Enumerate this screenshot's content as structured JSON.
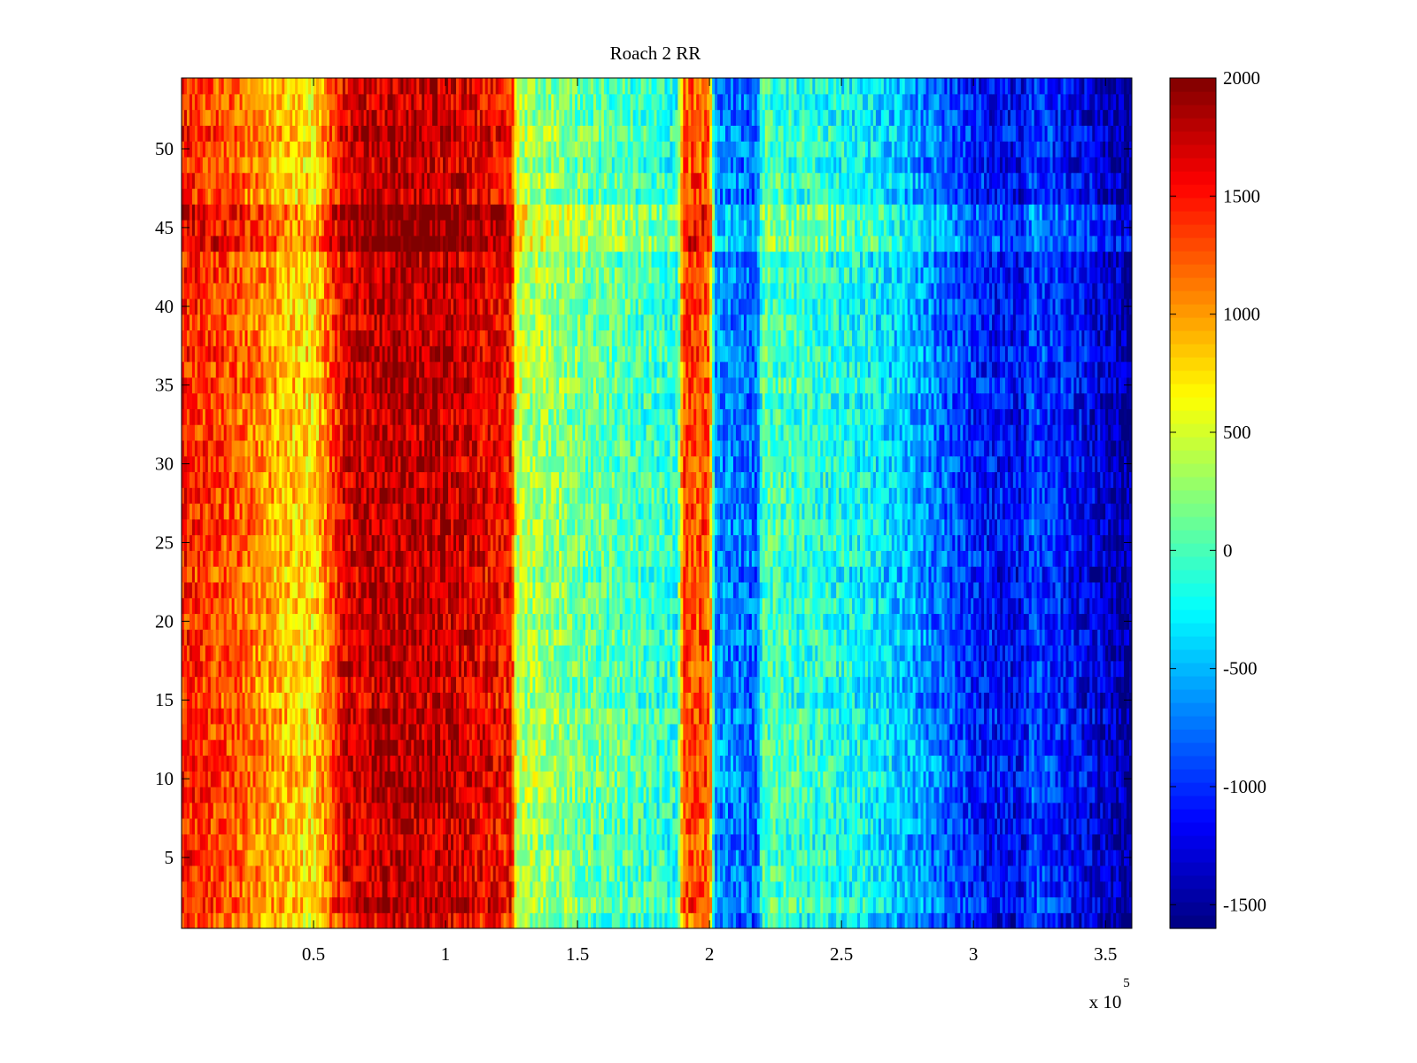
{
  "chart_data": {
    "type": "heatmap",
    "title": "Roach 2 RR",
    "xlabel": "",
    "ylabel": "",
    "xlim": [
      0,
      360000
    ],
    "ylim": [
      0.5,
      54.5
    ],
    "x_ticks": [
      50000,
      100000,
      150000,
      200000,
      250000,
      300000,
      350000
    ],
    "x_tick_labels": [
      "0.5",
      "1",
      "1.5",
      "2",
      "2.5",
      "3",
      "3.5"
    ],
    "x_exponent_label": "x 10",
    "x_exponent_power": "5",
    "y_ticks": [
      5,
      10,
      15,
      20,
      25,
      30,
      35,
      40,
      45,
      50
    ],
    "y_tick_labels": [
      "5",
      "10",
      "15",
      "20",
      "25",
      "30",
      "35",
      "40",
      "45",
      "50"
    ],
    "rows": 54,
    "colormap": "jet",
    "clim": [
      -1600,
      2000
    ],
    "colorbar": {
      "ticks": [
        2000,
        1500,
        1000,
        500,
        0,
        -500,
        -1000,
        -1500
      ],
      "tick_labels": [
        "2000",
        "1500",
        "1000",
        "500",
        "0",
        "-500",
        "-1000",
        "-1500"
      ],
      "placement": "right"
    },
    "column_profile": [
      {
        "x": 0,
        "value": 1450
      },
      {
        "x": 20000,
        "value": 1250
      },
      {
        "x": 40000,
        "value": 850
      },
      {
        "x": 50000,
        "value": 700
      },
      {
        "x": 56000,
        "value": 1200
      },
      {
        "x": 62000,
        "value": 1650
      },
      {
        "x": 80000,
        "value": 1800
      },
      {
        "x": 100000,
        "value": 1750
      },
      {
        "x": 115000,
        "value": 1600
      },
      {
        "x": 125000,
        "value": 1500
      },
      {
        "x": 127000,
        "value": 400
      },
      {
        "x": 150000,
        "value": 150
      },
      {
        "x": 170000,
        "value": 0
      },
      {
        "x": 188000,
        "value": -150
      },
      {
        "x": 190000,
        "value": 1300
      },
      {
        "x": 200000,
        "value": 1250
      },
      {
        "x": 202000,
        "value": -650
      },
      {
        "x": 218000,
        "value": -800
      },
      {
        "x": 220000,
        "value": 0
      },
      {
        "x": 260000,
        "value": -250
      },
      {
        "x": 280000,
        "value": -600
      },
      {
        "x": 300000,
        "value": -1050
      },
      {
        "x": 318000,
        "value": -1200
      },
      {
        "x": 322000,
        "value": -900
      },
      {
        "x": 340000,
        "value": -1150
      },
      {
        "x": 350000,
        "value": -1350
      },
      {
        "x": 360000,
        "value": -1550
      }
    ],
    "row_offsets": [
      {
        "rows": [
          44,
          45,
          46
        ],
        "offset": 280
      },
      {
        "rows": [
          1
        ],
        "offset": -150
      },
      {
        "rows": [
          2,
          25,
          26
        ],
        "offset": 80
      }
    ]
  }
}
